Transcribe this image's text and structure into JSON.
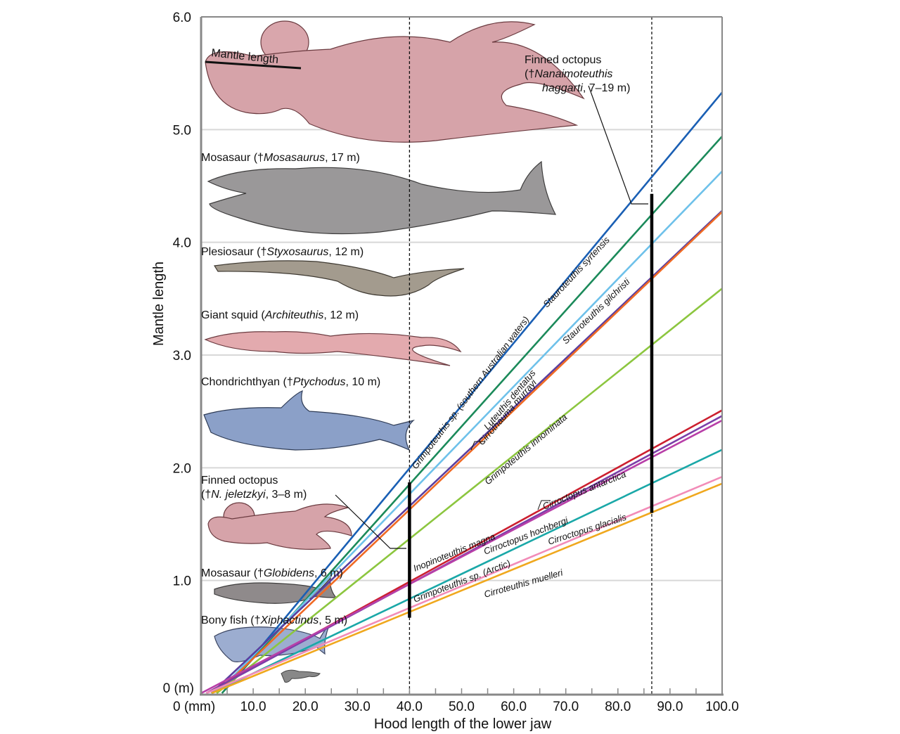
{
  "chart_data": {
    "type": "line",
    "title": "",
    "xlabel": "Hood length of the lower jaw",
    "ylabel": "Mantle length",
    "xlim": [
      0,
      100
    ],
    "ylim": [
      0,
      6.0
    ],
    "x_unit_label": "0 (mm)",
    "y_unit_label": "0 (m)",
    "x_ticks": [
      10,
      20,
      30,
      40,
      50,
      60,
      70,
      80,
      90,
      100
    ],
    "x_tick_labels": [
      "10.0",
      "20.0",
      "30.0",
      "40.0",
      "50.0",
      "60.0",
      "70.0",
      "80.0",
      "90.0",
      "100.0"
    ],
    "y_ticks": [
      1,
      2,
      3,
      4,
      5,
      6
    ],
    "y_tick_labels": [
      "1.0",
      "2.0",
      "3.0",
      "4.0",
      "5.0",
      "6.0"
    ],
    "grid": "horizontal",
    "reference_lines_x": [
      40.0,
      86.5
    ],
    "series": [
      {
        "name": "Stauroteuthis syrtensis",
        "color": "#1a5fb4",
        "x": [
          5,
          100
        ],
        "y": [
          0.05,
          5.33
        ]
      },
      {
        "name": "Grimpoteuthis sp. (southern Australian waters)",
        "color": "#1b8a5a",
        "x": [
          4,
          100
        ],
        "y": [
          0.0,
          4.94
        ]
      },
      {
        "name": "Stauroteuthis gilchristi",
        "color": "#6ec1ea",
        "x": [
          3,
          100
        ],
        "y": [
          0.0,
          4.63
        ]
      },
      {
        "name": "Luteuthis dentatus",
        "color": "#5a3fa0",
        "x": [
          2,
          100
        ],
        "y": [
          0.0,
          4.28
        ]
      },
      {
        "name": "Cirrothauma murrayi",
        "color": "#f06a24",
        "x": [
          3,
          100
        ],
        "y": [
          0.0,
          4.27
        ]
      },
      {
        "name": "Grimpoteuthis innominata",
        "color": "#8cc63f",
        "x": [
          3,
          100
        ],
        "y": [
          0.0,
          3.59
        ]
      },
      {
        "name": "Cirroctopus antarctica",
        "color": "#cc1f2f",
        "x": [
          1,
          100
        ],
        "y": [
          0.0,
          2.51
        ]
      },
      {
        "name": "Inopinoteuthis magna",
        "color": "#7b3fa8",
        "x": [
          1,
          100
        ],
        "y": [
          0.0,
          2.46
        ]
      },
      {
        "name": "Cirroctopus hochbergi",
        "color": "#b83fa8",
        "x": [
          0,
          100
        ],
        "y": [
          0.0,
          2.42
        ]
      },
      {
        "name": "Grimpoteuthis sp. (Arctic)",
        "color": "#1aa8a8",
        "x": [
          2,
          100
        ],
        "y": [
          0.0,
          2.16
        ]
      },
      {
        "name": "Cirroctopus glacialis",
        "color": "#f28cb8",
        "x": [
          1,
          100
        ],
        "y": [
          0.0,
          1.92
        ]
      },
      {
        "name": "Cirroteuthis muelleri",
        "color": "#f0a81e",
        "x": [
          2,
          100
        ],
        "y": [
          0.0,
          1.86
        ]
      }
    ],
    "range_bars": [
      {
        "name": "Finned octopus (N. jeletzkyi) range",
        "x": 40.0,
        "y": [
          0.67,
          1.87
        ]
      },
      {
        "name": "Finned octopus (N. haggarti) range",
        "x": 86.5,
        "y": [
          1.6,
          4.43
        ]
      }
    ],
    "annotations": [
      {
        "name": "mantle-length",
        "text": "Mantle length"
      },
      {
        "name": "nanaimoteuthis-haggarti",
        "line1": "Finned octopus",
        "line2_pre": "(†",
        "line2_italic": "Nanaimoteuthis",
        "line3_italic": "haggarti",
        "line3_post": ", 7–19 m)"
      },
      {
        "name": "mosasaurus",
        "pre": "Mosasaur (†",
        "italic": "Mosasaurus",
        "post": ", 17 m)"
      },
      {
        "name": "styxosaurus",
        "pre": "Plesiosaur (†",
        "italic": "Styxosaurus",
        "post": ", 12 m)"
      },
      {
        "name": "architeuthis",
        "pre": "Giant squid (",
        "italic": "Architeuthis",
        "post": ", 12 m)"
      },
      {
        "name": "ptychodus",
        "pre": "Chondrichthyan (†",
        "italic": "Ptychodus",
        "post": ", 10 m)"
      },
      {
        "name": "nanaimoteuthis-jeletzkyi",
        "line1": "Finned octopus",
        "line2_pre": "(†",
        "line2_italic": "N. jeletzkyi",
        "line2_post": ", 3–8 m)"
      },
      {
        "name": "globidens",
        "pre": "Mosasaur (†",
        "italic": "Globidens",
        "post": ", 6 m)"
      },
      {
        "name": "xiphactinus",
        "pre": "Bony fish (†",
        "italic": "Xiphactinus",
        "post": ", 5 m)"
      }
    ]
  }
}
